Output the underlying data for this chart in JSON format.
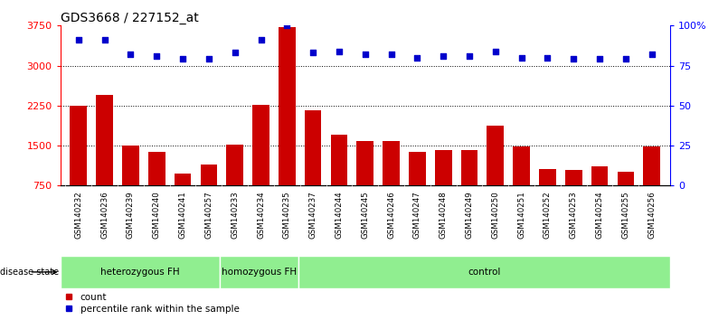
{
  "title": "GDS3668 / 227152_at",
  "samples": [
    "GSM140232",
    "GSM140236",
    "GSM140239",
    "GSM140240",
    "GSM140241",
    "GSM140257",
    "GSM140233",
    "GSM140234",
    "GSM140235",
    "GSM140237",
    "GSM140244",
    "GSM140245",
    "GSM140246",
    "GSM140247",
    "GSM140248",
    "GSM140249",
    "GSM140250",
    "GSM140251",
    "GSM140252",
    "GSM140253",
    "GSM140254",
    "GSM140255",
    "GSM140256"
  ],
  "counts": [
    2250,
    2450,
    1500,
    1380,
    980,
    1150,
    1510,
    2270,
    3720,
    2170,
    1700,
    1580,
    1580,
    1380,
    1420,
    1420,
    1870,
    1480,
    1060,
    1040,
    1110,
    1010,
    1480
  ],
  "percentiles": [
    91,
    91,
    82,
    81,
    79,
    79,
    83,
    91,
    100,
    83,
    84,
    82,
    82,
    80,
    81,
    81,
    84,
    80,
    80,
    79,
    79,
    79,
    82
  ],
  "groups": [
    {
      "name": "heterozygous FH",
      "start": 0,
      "end": 6
    },
    {
      "name": "homozygous FH",
      "start": 6,
      "end": 9
    },
    {
      "name": "control",
      "start": 9,
      "end": 23
    }
  ],
  "bar_color": "#cc0000",
  "dot_color": "#0000cc",
  "group_color": "#90EE90",
  "ylim_left": [
    750,
    3750
  ],
  "ylim_right": [
    0,
    100
  ],
  "yticks_left": [
    750,
    1500,
    2250,
    3000,
    3750
  ],
  "yticks_right": [
    0,
    25,
    50,
    75,
    100
  ],
  "grid_values": [
    1500,
    2250,
    3000
  ],
  "plot_bg": "#ffffff",
  "xtick_bg": "#d3d3d3",
  "title_fontsize": 10,
  "label_count": "count",
  "label_pct": "percentile rank within the sample"
}
